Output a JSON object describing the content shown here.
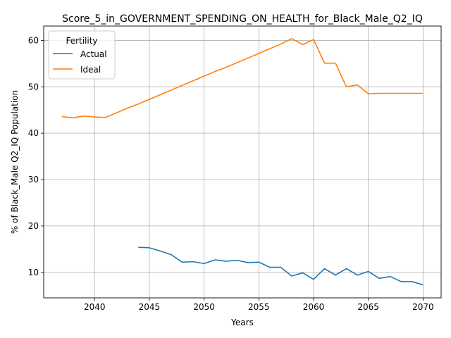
{
  "chart_data": {
    "type": "line",
    "title": "Score_5_in_GOVERNMENT_SPENDING_ON_HEALTH_for_Black_Male_Q2_IQ",
    "xlabel": "Years",
    "ylabel": "% of Black_Male Q2_IQ Population",
    "xlim": [
      2035.35,
      2071.65
    ],
    "ylim": [
      4.5,
      63.1
    ],
    "xticks": [
      2040,
      2045,
      2050,
      2055,
      2060,
      2065,
      2070
    ],
    "yticks": [
      10,
      20,
      30,
      40,
      50,
      60
    ],
    "grid": true,
    "legend": {
      "title": "Fertility",
      "placement": "upper left"
    },
    "series": [
      {
        "name": "Actual",
        "color": "#1f77b4",
        "x": [
          2044,
          2045,
          2046,
          2047,
          2048,
          2049,
          2050,
          2051,
          2052,
          2053,
          2054,
          2055,
          2056,
          2057,
          2058,
          2059,
          2060,
          2061,
          2062,
          2063,
          2064,
          2065,
          2066,
          2067,
          2068,
          2069,
          2070
        ],
        "values": [
          15.4,
          15.3,
          14.6,
          13.8,
          12.2,
          12.3,
          11.9,
          12.7,
          12.4,
          12.6,
          12.1,
          12.2,
          11.1,
          11.1,
          9.2,
          9.9,
          8.5,
          10.8,
          9.4,
          10.8,
          9.4,
          10.2,
          8.7,
          9.1,
          8.0,
          8.0,
          7.3
        ]
      },
      {
        "name": "Ideal",
        "color": "#ff7f0e",
        "x": [
          2037,
          2038,
          2039,
          2040,
          2041,
          2042,
          2043,
          2044,
          2045,
          2046,
          2047,
          2048,
          2049,
          2050,
          2051,
          2052,
          2053,
          2054,
          2055,
          2056,
          2057,
          2058,
          2059,
          2060,
          2061,
          2062,
          2063,
          2064,
          2065,
          2066,
          2067,
          2068,
          2069,
          2070
        ],
        "values": [
          43.6,
          43.3,
          43.7,
          43.5,
          43.4,
          44.4,
          45.4,
          46.3,
          47.3,
          48.3,
          49.3,
          50.3,
          51.3,
          52.3,
          53.3,
          54.2,
          55.2,
          56.2,
          57.2,
          58.2,
          59.2,
          60.4,
          59.1,
          60.2,
          55.1,
          55.1,
          50.0,
          50.4,
          48.5,
          48.6,
          48.6,
          48.6,
          48.6,
          48.6
        ]
      }
    ]
  }
}
